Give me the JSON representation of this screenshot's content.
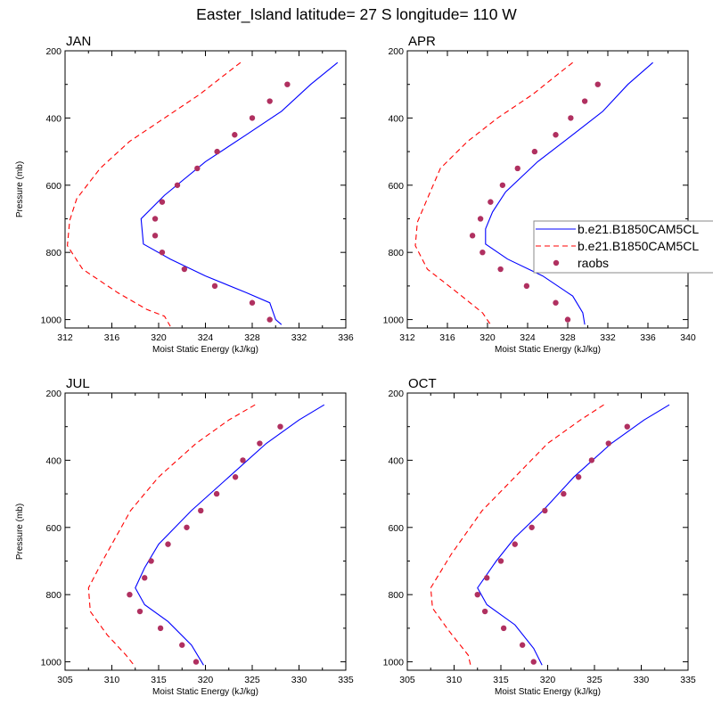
{
  "title": "Easter_Island  latitude= 27 S longitude= 110 W",
  "colors": {
    "model1": "#0000ff",
    "model2": "#ff0000",
    "raobs": "#b03060"
  },
  "legend": {
    "entries": [
      {
        "label": "b.e21.B1850CAM5CL",
        "style": "solid",
        "color": "#0000ff"
      },
      {
        "label": "b.e21.B1850CAM5CL",
        "style": "dashed",
        "color": "#ff0000"
      },
      {
        "label": "raobs",
        "style": "marker",
        "color": "#b03060"
      }
    ]
  },
  "chart_data": [
    {
      "type": "line",
      "panel": "JAN",
      "xlabel": "Moist Static Energy (kJ/kg)",
      "ylabel": "Pressure (mb)",
      "xlim": [
        312,
        336
      ],
      "xticks": [
        312,
        316,
        320,
        324,
        328,
        332,
        336
      ],
      "ylim": [
        1025,
        200
      ],
      "yticks": [
        200,
        400,
        600,
        800,
        1000
      ],
      "series": [
        {
          "name": "b.e21.B1850CAM5CL",
          "style": "solid",
          "color": "#0000ff",
          "points": [
            [
              335.3,
              235
            ],
            [
              333,
              300
            ],
            [
              330.5,
              380
            ],
            [
              327.5,
              450
            ],
            [
              324,
              530
            ],
            [
              320.5,
              630
            ],
            [
              318.5,
              700
            ],
            [
              318.7,
              775
            ],
            [
              321,
              820
            ],
            [
              324,
              870
            ],
            [
              327.5,
              920
            ],
            [
              329.5,
              950
            ],
            [
              330,
              1000
            ],
            [
              330.5,
              1015
            ]
          ]
        },
        {
          "name": "b.e21.B1850CAM5CL",
          "style": "dashed",
          "color": "#ff0000",
          "points": [
            [
              327,
              235
            ],
            [
              325.7,
              270
            ],
            [
              323.5,
              330
            ],
            [
              320.5,
              400
            ],
            [
              317.5,
              470
            ],
            [
              315,
              550
            ],
            [
              313,
              640
            ],
            [
              312.4,
              705
            ],
            [
              312.2,
              780
            ],
            [
              313.5,
              850
            ],
            [
              316.5,
              920
            ],
            [
              319,
              970
            ],
            [
              320.5,
              990
            ],
            [
              321,
              1020
            ]
          ]
        },
        {
          "name": "raobs",
          "style": "marker",
          "color": "#b03060",
          "points": [
            [
              331,
              300
            ],
            [
              329.5,
              350
            ],
            [
              328,
              400
            ],
            [
              326.5,
              450
            ],
            [
              325,
              500
            ],
            [
              323.3,
              550
            ],
            [
              321.6,
              600
            ],
            [
              320.3,
              650
            ],
            [
              319.7,
              700
            ],
            [
              319.7,
              750
            ],
            [
              320.3,
              800
            ],
            [
              322.2,
              850
            ],
            [
              324.8,
              900
            ],
            [
              328,
              950
            ],
            [
              329.5,
              1000
            ]
          ]
        }
      ]
    },
    {
      "type": "line",
      "panel": "APR",
      "xlabel": "Moist Static Energy (kJ/kg)",
      "ylabel": "",
      "xlim": [
        312,
        340
      ],
      "xticks": [
        312,
        316,
        320,
        324,
        328,
        332,
        336,
        340
      ],
      "ylim": [
        1025,
        200
      ],
      "yticks": [
        200,
        400,
        600,
        800,
        1000
      ],
      "series": [
        {
          "name": "b.e21.B1850CAM5CL",
          "style": "solid",
          "color": "#0000ff",
          "points": [
            [
              336.5,
              235
            ],
            [
              334,
              300
            ],
            [
              331.5,
              380
            ],
            [
              328.5,
              450
            ],
            [
              325,
              530
            ],
            [
              321.8,
              620
            ],
            [
              320.5,
              680
            ],
            [
              319.8,
              730
            ],
            [
              319.8,
              775
            ],
            [
              322,
              820
            ],
            [
              325.5,
              870
            ],
            [
              328.5,
              930
            ],
            [
              329.5,
              980
            ],
            [
              329.7,
              1015
            ]
          ]
        },
        {
          "name": "b.e21.B1850CAM5CL",
          "style": "dashed",
          "color": "#ff0000",
          "points": [
            [
              328.5,
              235
            ],
            [
              327,
              270
            ],
            [
              324.5,
              330
            ],
            [
              321,
              400
            ],
            [
              318,
              470
            ],
            [
              315.3,
              550
            ],
            [
              314,
              640
            ],
            [
              313,
              710
            ],
            [
              312.8,
              780
            ],
            [
              314,
              850
            ],
            [
              317,
              920
            ],
            [
              319.5,
              980
            ],
            [
              320.3,
              1015
            ]
          ]
        },
        {
          "name": "raobs",
          "style": "marker",
          "color": "#b03060",
          "points": [
            [
              331,
              300
            ],
            [
              329.7,
              350
            ],
            [
              328.3,
              400
            ],
            [
              326.8,
              450
            ],
            [
              324.7,
              500
            ],
            [
              323,
              550
            ],
            [
              321.5,
              600
            ],
            [
              320.3,
              650
            ],
            [
              319.3,
              700
            ],
            [
              318.5,
              750
            ],
            [
              319.5,
              800
            ],
            [
              321.3,
              850
            ],
            [
              323.9,
              900
            ],
            [
              326.8,
              950
            ],
            [
              328,
              1000
            ]
          ]
        }
      ]
    },
    {
      "type": "line",
      "panel": "JUL",
      "xlabel": "Moist Static Energy (kJ/kg)",
      "ylabel": "Pressure (mb)",
      "xlim": [
        305,
        335
      ],
      "xticks": [
        305,
        310,
        315,
        320,
        325,
        330,
        335
      ],
      "ylim": [
        1025,
        200
      ],
      "yticks": [
        200,
        400,
        600,
        800,
        1000
      ],
      "series": [
        {
          "name": "b.e21.B1850CAM5CL",
          "style": "solid",
          "color": "#0000ff",
          "points": [
            [
              332.7,
              235
            ],
            [
              330,
              280
            ],
            [
              326.5,
              350
            ],
            [
              322.5,
              450
            ],
            [
              318.5,
              550
            ],
            [
              315,
              650
            ],
            [
              313.5,
              720
            ],
            [
              312.5,
              780
            ],
            [
              313.5,
              830
            ],
            [
              316,
              880
            ],
            [
              318.5,
              950
            ],
            [
              319.8,
              1010
            ]
          ]
        },
        {
          "name": "b.e21.B1850CAM5CL",
          "style": "dashed",
          "color": "#ff0000",
          "points": [
            [
              325.3,
              235
            ],
            [
              322.5,
              280
            ],
            [
              319,
              350
            ],
            [
              315,
              450
            ],
            [
              312,
              550
            ],
            [
              309,
              700
            ],
            [
              307.5,
              780
            ],
            [
              307.7,
              850
            ],
            [
              309.5,
              920
            ],
            [
              311.5,
              980
            ],
            [
              312.5,
              1015
            ]
          ]
        },
        {
          "name": "raobs",
          "style": "marker",
          "color": "#b03060",
          "points": [
            [
              328,
              300
            ],
            [
              325.8,
              350
            ],
            [
              324,
              400
            ],
            [
              323.2,
              450
            ],
            [
              321.2,
              500
            ],
            [
              319.5,
              550
            ],
            [
              318,
              600
            ],
            [
              316,
              650
            ],
            [
              314.2,
              700
            ],
            [
              313.5,
              750
            ],
            [
              311.9,
              800
            ],
            [
              313,
              850
            ],
            [
              315.2,
              900
            ],
            [
              317.5,
              950
            ],
            [
              319,
              1000
            ]
          ]
        }
      ]
    },
    {
      "type": "line",
      "panel": "OCT",
      "xlabel": "Moist Static Energy (kJ/kg)",
      "ylabel": "",
      "xlim": [
        305,
        335
      ],
      "xticks": [
        305,
        310,
        315,
        320,
        325,
        330,
        335
      ],
      "ylim": [
        1025,
        200
      ],
      "yticks": [
        200,
        400,
        600,
        800,
        1000
      ],
      "series": [
        {
          "name": "b.e21.B1850CAM5CL",
          "style": "solid",
          "color": "#0000ff",
          "points": [
            [
              333,
              235
            ],
            [
              330.3,
              280
            ],
            [
              326.8,
              350
            ],
            [
              322.8,
              450
            ],
            [
              319.5,
              550
            ],
            [
              316.5,
              630
            ],
            [
              314.5,
              700
            ],
            [
              312.5,
              780
            ],
            [
              313.5,
              830
            ],
            [
              316.5,
              890
            ],
            [
              318.5,
              960
            ],
            [
              319.4,
              1010
            ]
          ]
        },
        {
          "name": "b.e21.B1850CAM5CL",
          "style": "dashed",
          "color": "#ff0000",
          "points": [
            [
              326,
              235
            ],
            [
              323.5,
              280
            ],
            [
              320,
              350
            ],
            [
              316.5,
              450
            ],
            [
              313,
              550
            ],
            [
              309.7,
              680
            ],
            [
              307.5,
              780
            ],
            [
              307.7,
              840
            ],
            [
              309.5,
              910
            ],
            [
              311.5,
              980
            ],
            [
              311.8,
              1015
            ]
          ]
        },
        {
          "name": "raobs",
          "style": "marker",
          "color": "#b03060",
          "points": [
            [
              328.5,
              300
            ],
            [
              326.5,
              350
            ],
            [
              324.7,
              400
            ],
            [
              323.3,
              450
            ],
            [
              321.7,
              500
            ],
            [
              319.7,
              550
            ],
            [
              318.3,
              600
            ],
            [
              316.5,
              650
            ],
            [
              315,
              700
            ],
            [
              313.5,
              750
            ],
            [
              312.5,
              800
            ],
            [
              313.3,
              850
            ],
            [
              315.3,
              900
            ],
            [
              317.3,
              950
            ],
            [
              318.5,
              1000
            ]
          ]
        }
      ]
    }
  ]
}
